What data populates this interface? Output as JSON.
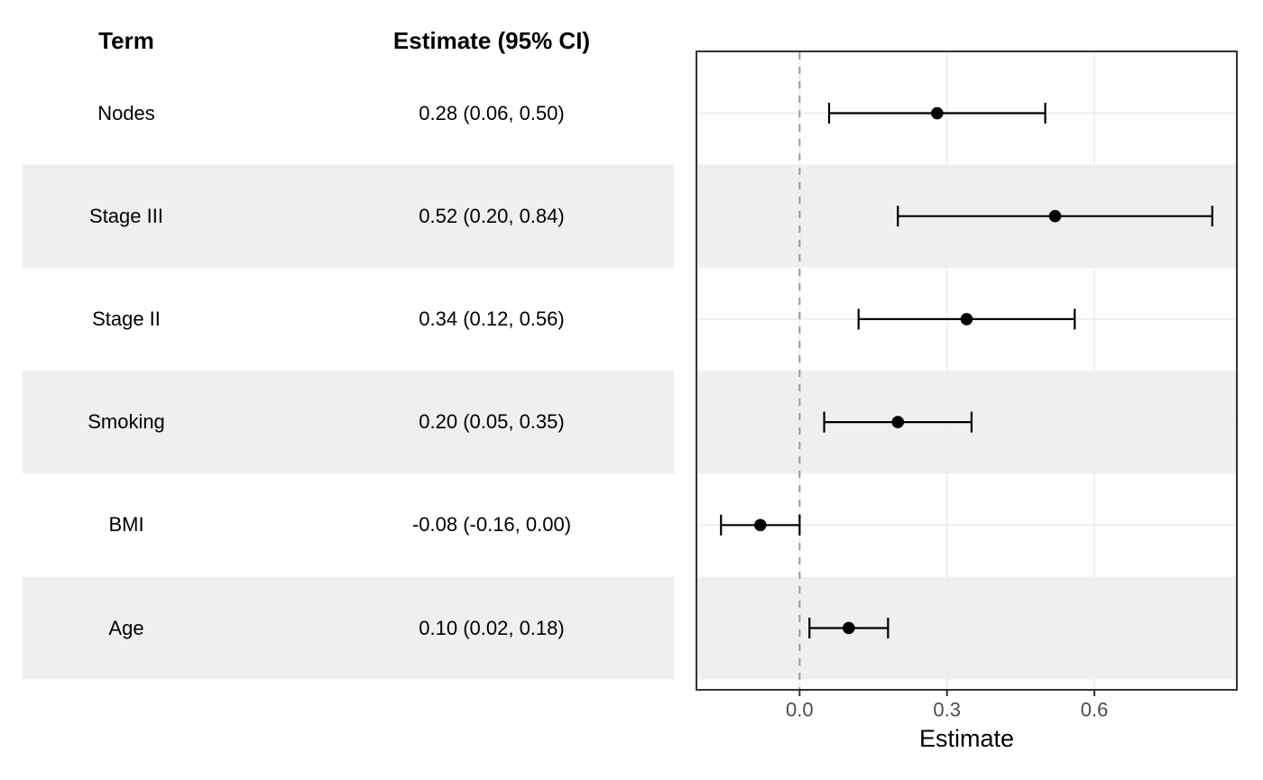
{
  "table": {
    "headers": {
      "term": "Term",
      "estimate": "Estimate (95% CI)"
    },
    "rows": [
      {
        "term": "Nodes",
        "estimate": "0.28 (0.06, 0.50)"
      },
      {
        "term": "Stage III",
        "estimate": "0.52 (0.20, 0.84)"
      },
      {
        "term": "Stage II",
        "estimate": "0.34 (0.12, 0.56)"
      },
      {
        "term": "Smoking",
        "estimate": "0.20 (0.05, 0.35)"
      },
      {
        "term": "BMI",
        "estimate": "-0.08 (-0.16, 0.00)"
      },
      {
        "term": "Age",
        "estimate": "0.10 (0.02, 0.18)"
      }
    ]
  },
  "chart_data": {
    "type": "scatter",
    "variant": "forest-plot",
    "xlabel": "Estimate",
    "categories": [
      "Nodes",
      "Stage III",
      "Stage II",
      "Smoking",
      "BMI",
      "Age"
    ],
    "points": [
      {
        "term": "Nodes",
        "estimate": 0.28,
        "ci_low": 0.06,
        "ci_high": 0.5,
        "label": "0.28 (0.06, 0.50)"
      },
      {
        "term": "Stage III",
        "estimate": 0.52,
        "ci_low": 0.2,
        "ci_high": 0.84,
        "label": "0.52 (0.20, 0.84)"
      },
      {
        "term": "Stage II",
        "estimate": 0.34,
        "ci_low": 0.12,
        "ci_high": 0.56,
        "label": "0.34 (0.12, 0.56)"
      },
      {
        "term": "Smoking",
        "estimate": 0.2,
        "ci_low": 0.05,
        "ci_high": 0.35,
        "label": "0.20 (0.05, 0.35)"
      },
      {
        "term": "BMI",
        "estimate": -0.08,
        "ci_low": -0.16,
        "ci_high": 0.0,
        "label": "-0.08 (-0.16, 0.00)"
      },
      {
        "term": "Age",
        "estimate": 0.1,
        "ci_low": 0.02,
        "ci_high": 0.18,
        "label": "0.10 (0.02, 0.18)"
      }
    ],
    "xlim": [
      -0.21,
      0.89
    ],
    "x_ticks": [
      {
        "value": 0.0,
        "label": "0.0"
      },
      {
        "value": 0.3,
        "label": "0.3"
      },
      {
        "value": 0.6,
        "label": "0.6"
      }
    ],
    "reference_line": {
      "value": 0,
      "style": "dashed"
    },
    "grid": "major",
    "legend": "none",
    "striped_row_indices": [
      1,
      3,
      5
    ],
    "colors": {
      "marker": "#000000",
      "stripe": "#EFEFEF",
      "gridline": "#EBEBEB",
      "reference_line": "#999999",
      "panel_border": "#333333",
      "axis_text": "#4D4D4D",
      "axis_title": "#000000"
    }
  }
}
